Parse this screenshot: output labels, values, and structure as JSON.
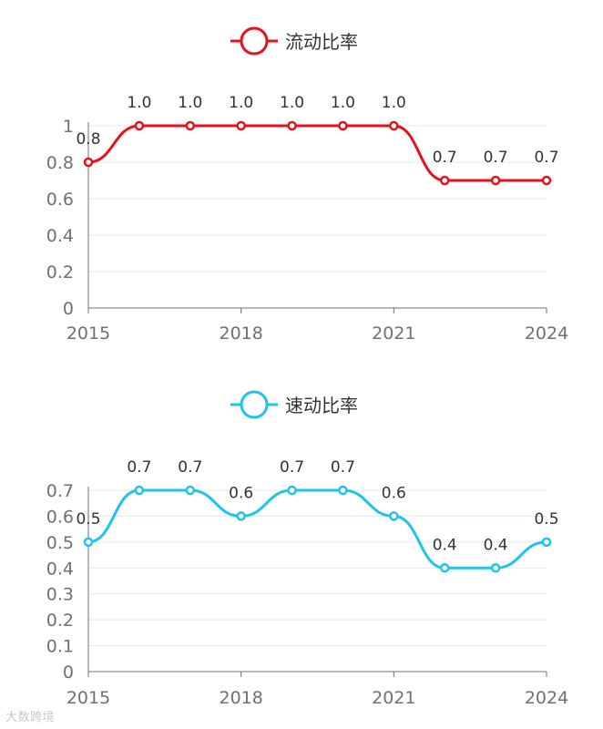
{
  "watermark": "大数跨境",
  "chart_data": [
    {
      "type": "line",
      "title": "",
      "legend": {
        "position": "top-center",
        "label": "流动比率"
      },
      "color": "#e8101a",
      "x": [
        2015,
        2016,
        2017,
        2018,
        2019,
        2020,
        2021,
        2022,
        2023,
        2024
      ],
      "x_tick_labels": [
        "2015",
        "2018",
        "2021",
        "2024"
      ],
      "series": [
        {
          "name": "流动比率",
          "values": [
            0.8,
            1.0,
            1.0,
            1.0,
            1.0,
            1.0,
            1.0,
            0.7,
            0.7,
            0.7
          ],
          "data_labels": [
            "0.8",
            "1.0",
            "1.0",
            "1.0",
            "1.0",
            "1.0",
            "1.0",
            "0.7",
            "0.7",
            "0.7"
          ]
        }
      ],
      "ylim": [
        0,
        1
      ],
      "y_ticks": [
        0,
        0.2,
        0.4,
        0.6,
        0.8,
        1
      ],
      "y_tick_labels": [
        "0",
        "0.2",
        "0.4",
        "0.6",
        "0.8",
        "1"
      ],
      "grid": true,
      "smooth": true
    },
    {
      "type": "line",
      "title": "",
      "legend": {
        "position": "top-center",
        "label": "速动比率"
      },
      "color": "#1ec3ef",
      "x": [
        2015,
        2016,
        2017,
        2018,
        2019,
        2020,
        2021,
        2022,
        2023,
        2024
      ],
      "x_tick_labels": [
        "2015",
        "2018",
        "2021",
        "2024"
      ],
      "series": [
        {
          "name": "速动比率",
          "values": [
            0.5,
            0.7,
            0.7,
            0.6,
            0.7,
            0.7,
            0.6,
            0.4,
            0.4,
            0.5
          ],
          "data_labels": [
            "0.5",
            "0.7",
            "0.7",
            "0.6",
            "0.7",
            "0.7",
            "0.6",
            "0.4",
            "0.4",
            "0.5"
          ]
        }
      ],
      "ylim": [
        0,
        0.7
      ],
      "y_ticks": [
        0,
        0.1,
        0.2,
        0.3,
        0.4,
        0.5,
        0.6,
        0.7
      ],
      "y_tick_labels": [
        "0",
        "0.1",
        "0.2",
        "0.3",
        "0.4",
        "0.5",
        "0.6",
        "0.7"
      ],
      "grid": true,
      "smooth": true
    }
  ]
}
